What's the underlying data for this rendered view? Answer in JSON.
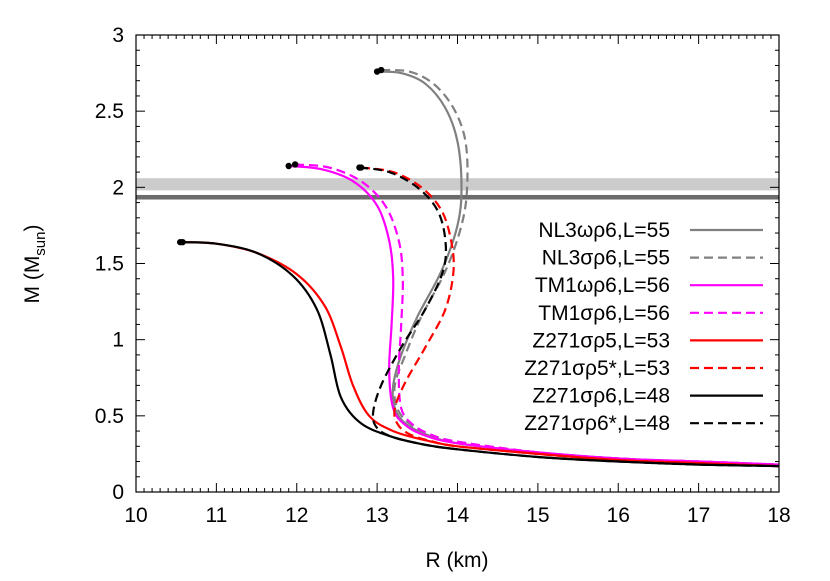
{
  "chart_data": {
    "type": "line",
    "title": "",
    "xlabel": "R (km)",
    "ylabel": "M (M_sun)",
    "ylabel_main": "M (M",
    "ylabel_sub": "sun",
    "ylabel_close": ")",
    "xlim": [
      10,
      18
    ],
    "ylim": [
      0,
      3
    ],
    "xticks": [
      10,
      11,
      12,
      13,
      14,
      15,
      16,
      17,
      18
    ],
    "yticks": [
      0,
      0.5,
      1,
      1.5,
      2,
      2.5,
      3
    ],
    "xtick_labels": [
      "10",
      "11",
      "12",
      "13",
      "14",
      "15",
      "16",
      "17",
      "18"
    ],
    "ytick_labels": [
      "0",
      "0.5",
      "1",
      "1.5",
      "2",
      "2.5",
      "3"
    ],
    "grid": false,
    "legend_position": "right-center inside",
    "bands": [
      {
        "name": "observation-band-light",
        "ymin": 1.98,
        "ymax": 2.06,
        "color": "#cccccc"
      },
      {
        "name": "observation-band-dark",
        "ymin": 1.92,
        "ymax": 1.95,
        "color": "#6b6b6b"
      }
    ],
    "series": [
      {
        "name": "NL3ωρ6,L=55",
        "color": "#808080",
        "dash": "solid",
        "x": [
          13.0,
          13.3,
          13.6,
          13.85,
          14.0,
          14.05,
          14.0,
          13.8,
          13.5,
          13.3,
          13.2,
          13.22,
          13.35,
          13.6,
          14.0,
          15.0,
          16.0,
          17.0,
          18.0
        ],
        "y": [
          2.76,
          2.75,
          2.68,
          2.52,
          2.3,
          2.0,
          1.75,
          1.45,
          1.15,
          0.9,
          0.7,
          0.55,
          0.45,
          0.38,
          0.32,
          0.26,
          0.22,
          0.2,
          0.18
        ]
      },
      {
        "name": "NL3σρ6,L=55",
        "color": "#808080",
        "dash": "dashed",
        "x": [
          13.05,
          13.4,
          13.7,
          13.95,
          14.1,
          14.12,
          14.05,
          13.85,
          13.55,
          13.35,
          13.22,
          13.25,
          13.4,
          13.65,
          14.0,
          15.0,
          16.0,
          17.0,
          18.0
        ],
        "y": [
          2.77,
          2.76,
          2.68,
          2.52,
          2.3,
          2.0,
          1.75,
          1.45,
          1.15,
          0.9,
          0.7,
          0.55,
          0.45,
          0.38,
          0.33,
          0.26,
          0.22,
          0.2,
          0.18
        ]
      },
      {
        "name": "TM1ωρ6,L=56",
        "color": "#ff00ff",
        "dash": "solid",
        "x": [
          11.9,
          12.3,
          12.7,
          13.0,
          13.15,
          13.2,
          13.18,
          13.15,
          13.2,
          13.35,
          13.6,
          14.0,
          15.0,
          16.0,
          17.0,
          18.0
        ],
        "y": [
          2.14,
          2.12,
          2.04,
          1.88,
          1.65,
          1.4,
          1.1,
          0.8,
          0.55,
          0.44,
          0.37,
          0.32,
          0.26,
          0.22,
          0.2,
          0.18
        ]
      },
      {
        "name": "TM1σρ6,L=56",
        "color": "#ff00ff",
        "dash": "dashed",
        "x": [
          11.98,
          12.4,
          12.8,
          13.1,
          13.27,
          13.32,
          13.3,
          13.27,
          13.3,
          13.45,
          13.7,
          14.0,
          15.0,
          16.0,
          17.0,
          18.0
        ],
        "y": [
          2.15,
          2.13,
          2.04,
          1.88,
          1.65,
          1.4,
          1.1,
          0.8,
          0.55,
          0.44,
          0.37,
          0.33,
          0.26,
          0.22,
          0.2,
          0.18
        ]
      },
      {
        "name": "Z271σρ5,L=53",
        "color": "#ff0000",
        "dash": "solid",
        "x": [
          10.58,
          11.0,
          11.5,
          12.0,
          12.35,
          12.55,
          12.7,
          12.9,
          13.2,
          13.6,
          14.0,
          15.0,
          16.0,
          17.0,
          18.0
        ],
        "y": [
          1.64,
          1.63,
          1.57,
          1.43,
          1.22,
          0.95,
          0.7,
          0.5,
          0.4,
          0.34,
          0.3,
          0.25,
          0.21,
          0.19,
          0.17
        ]
      },
      {
        "name": "Z271σρ5*,L=53",
        "color": "#ff0000",
        "dash": "dashed",
        "x": [
          12.8,
          13.2,
          13.55,
          13.8,
          13.92,
          13.95,
          13.85,
          13.6,
          13.35,
          13.22,
          13.25,
          13.4,
          13.7,
          14.0,
          15.0,
          16.0,
          17.0,
          18.0
        ],
        "y": [
          2.13,
          2.1,
          2.0,
          1.85,
          1.65,
          1.45,
          1.2,
          0.95,
          0.72,
          0.55,
          0.45,
          0.38,
          0.33,
          0.3,
          0.25,
          0.21,
          0.19,
          0.17
        ]
      },
      {
        "name": "Z271σρ6,L=48",
        "color": "#000000",
        "dash": "solid",
        "x": [
          10.55,
          11.0,
          11.5,
          11.95,
          12.25,
          12.42,
          12.55,
          12.8,
          13.2,
          13.6,
          14.0,
          15.0,
          16.0,
          17.0,
          18.0
        ],
        "y": [
          1.64,
          1.63,
          1.57,
          1.42,
          1.2,
          0.9,
          0.62,
          0.45,
          0.36,
          0.31,
          0.28,
          0.23,
          0.2,
          0.18,
          0.17
        ]
      },
      {
        "name": "Z271σρ6*,L=48",
        "color": "#000000",
        "dash": "dashed",
        "x": [
          12.78,
          13.15,
          13.5,
          13.75,
          13.85,
          13.82,
          13.6,
          13.3,
          13.05,
          12.95,
          13.0,
          13.2,
          13.6,
          14.0,
          15.0,
          16.0,
          17.0,
          18.0
        ],
        "y": [
          2.13,
          2.1,
          2.0,
          1.85,
          1.65,
          1.45,
          1.2,
          0.95,
          0.7,
          0.52,
          0.42,
          0.36,
          0.31,
          0.28,
          0.23,
          0.2,
          0.18,
          0.17
        ]
      }
    ],
    "max_mass_points": [
      {
        "series": "NL3ωρ6,L=55",
        "x": 13.0,
        "y": 2.76
      },
      {
        "series": "NL3σρ6,L=55",
        "x": 13.05,
        "y": 2.77
      },
      {
        "series": "TM1ωρ6,L=56",
        "x": 11.9,
        "y": 2.14
      },
      {
        "series": "TM1σρ6,L=56",
        "x": 11.98,
        "y": 2.15
      },
      {
        "series": "Z271σρ5,L=53",
        "x": 10.58,
        "y": 1.64
      },
      {
        "series": "Z271σρ5*,L=53",
        "x": 12.8,
        "y": 2.13
      },
      {
        "series": "Z271σρ6,L=48",
        "x": 10.55,
        "y": 1.64
      },
      {
        "series": "Z271σρ6*,L=48",
        "x": 12.78,
        "y": 2.13
      }
    ]
  },
  "legend": {
    "items": [
      {
        "label": "NL3ωρ6,L=55",
        "color": "#808080",
        "dash": "solid"
      },
      {
        "label": "NL3σρ6,L=55",
        "color": "#808080",
        "dash": "dashed"
      },
      {
        "label": "TM1ωρ6,L=56",
        "color": "#ff00ff",
        "dash": "solid"
      },
      {
        "label": "TM1σρ6,L=56",
        "color": "#ff00ff",
        "dash": "dashed"
      },
      {
        "label": "Z271σρ5,L=53",
        "color": "#ff0000",
        "dash": "solid"
      },
      {
        "label": "Z271σρ5*,L=53",
        "color": "#ff0000",
        "dash": "dashed"
      },
      {
        "label": "Z271σρ6,L=48",
        "color": "#000000",
        "dash": "solid"
      },
      {
        "label": "Z271σρ6*,L=48",
        "color": "#000000",
        "dash": "dashed"
      }
    ]
  }
}
